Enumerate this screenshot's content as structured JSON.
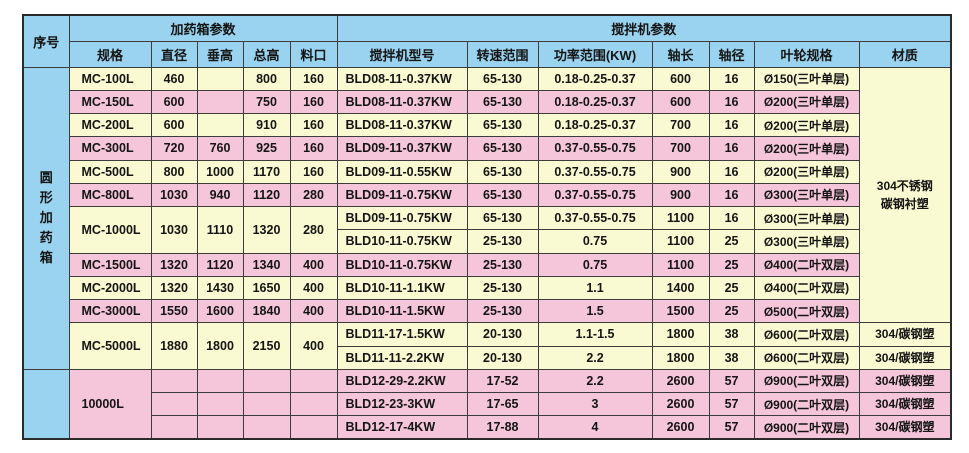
{
  "colors": {
    "header_blue": "#9ad3ef",
    "row_yellow": "#fafad2",
    "row_pink": "#f5c6d9",
    "border": "#3c3c3c",
    "text": "#141414"
  },
  "table": {
    "header": {
      "serial": "序号",
      "tank_group": "加药箱参数",
      "mixer_group": "搅拌机参数",
      "cols": [
        "规格",
        "直径",
        "垂高",
        "总高",
        "料口",
        "搅拌机型号",
        "转速范围",
        "功率范围(KW)",
        "轴长",
        "轴径",
        "叶轮规格",
        "材质"
      ]
    },
    "row_group_label": "圆形加药箱",
    "merged_material": "304不锈钢\n碳钢衬塑",
    "rows": [
      {
        "bg": "yellow",
        "cells": [
          {
            "v": "圆形加药箱",
            "rs": 13,
            "bg": "blue",
            "vert": true,
            "n": "row-group-label"
          },
          {
            "v": "MC-100L",
            "left": true,
            "n": "spec-cell"
          },
          {
            "v": "460"
          },
          {
            "v": ""
          },
          {
            "v": "800"
          },
          {
            "v": "160"
          },
          {
            "v": "BLD08-11-0.37KW",
            "leftsm": true,
            "n": "model-cell"
          },
          {
            "v": "65-130"
          },
          {
            "v": "0.18-0.25-0.37"
          },
          {
            "v": "600"
          },
          {
            "v": "16"
          },
          {
            "v": "Ø150(三叶单层)",
            "imp": true,
            "n": "impeller-cell"
          },
          {
            "v": "304不锈钢\n碳钢衬塑",
            "rs": 11,
            "mat": true,
            "n": "material-merged-cell"
          }
        ]
      },
      {
        "bg": "pink",
        "cells": [
          {
            "v": "MC-150L",
            "left": true,
            "n": "spec-cell"
          },
          {
            "v": "600"
          },
          {
            "v": ""
          },
          {
            "v": "750"
          },
          {
            "v": "160"
          },
          {
            "v": "BLD08-11-0.37KW",
            "leftsm": true,
            "n": "model-cell"
          },
          {
            "v": "65-130"
          },
          {
            "v": "0.18-0.25-0.37"
          },
          {
            "v": "600"
          },
          {
            "v": "16"
          },
          {
            "v": "Ø200(三叶单层)",
            "imp": true,
            "n": "impeller-cell"
          }
        ]
      },
      {
        "bg": "yellow",
        "cells": [
          {
            "v": "MC-200L",
            "left": true,
            "n": "spec-cell"
          },
          {
            "v": "600"
          },
          {
            "v": ""
          },
          {
            "v": "910"
          },
          {
            "v": "160"
          },
          {
            "v": "BLD08-11-0.37KW",
            "leftsm": true,
            "n": "model-cell"
          },
          {
            "v": "65-130"
          },
          {
            "v": "0.18-0.25-0.37"
          },
          {
            "v": "700"
          },
          {
            "v": "16"
          },
          {
            "v": "Ø200(三叶单层)",
            "imp": true,
            "n": "impeller-cell"
          }
        ]
      },
      {
        "bg": "pink",
        "cells": [
          {
            "v": "MC-300L",
            "left": true,
            "n": "spec-cell"
          },
          {
            "v": "720"
          },
          {
            "v": "760"
          },
          {
            "v": "925"
          },
          {
            "v": "160"
          },
          {
            "v": "BLD09-11-0.37KW",
            "leftsm": true,
            "n": "model-cell"
          },
          {
            "v": "65-130"
          },
          {
            "v": "0.37-0.55-0.75"
          },
          {
            "v": "700"
          },
          {
            "v": "16"
          },
          {
            "v": "Ø200(三叶单层)",
            "imp": true,
            "n": "impeller-cell"
          }
        ]
      },
      {
        "bg": "yellow",
        "cells": [
          {
            "v": "MC-500L",
            "left": true,
            "n": "spec-cell"
          },
          {
            "v": "800"
          },
          {
            "v": "1000"
          },
          {
            "v": "1170"
          },
          {
            "v": "160"
          },
          {
            "v": "BLD09-11-0.55KW",
            "leftsm": true,
            "n": "model-cell"
          },
          {
            "v": "65-130"
          },
          {
            "v": "0.37-0.55-0.75"
          },
          {
            "v": "900"
          },
          {
            "v": "16"
          },
          {
            "v": "Ø200(三叶单层)",
            "imp": true,
            "n": "impeller-cell"
          }
        ]
      },
      {
        "bg": "pink",
        "cells": [
          {
            "v": "MC-800L",
            "left": true,
            "n": "spec-cell"
          },
          {
            "v": "1030"
          },
          {
            "v": "940"
          },
          {
            "v": "1120"
          },
          {
            "v": "280"
          },
          {
            "v": "BLD09-11-0.75KW",
            "leftsm": true,
            "n": "model-cell"
          },
          {
            "v": "65-130"
          },
          {
            "v": "0.37-0.55-0.75"
          },
          {
            "v": "900"
          },
          {
            "v": "16"
          },
          {
            "v": "Ø300(三叶单层)",
            "imp": true,
            "n": "impeller-cell"
          }
        ]
      },
      {
        "bg": "yellow",
        "cells": [
          {
            "v": "MC-1000L",
            "rs": 2,
            "left": true,
            "n": "spec-cell"
          },
          {
            "v": "1030",
            "rs": 2
          },
          {
            "v": "1110",
            "rs": 2
          },
          {
            "v": "1320",
            "rs": 2
          },
          {
            "v": "280",
            "rs": 2
          },
          {
            "v": "BLD09-11-0.75KW",
            "leftsm": true,
            "n": "model-cell"
          },
          {
            "v": "65-130"
          },
          {
            "v": "0.37-0.55-0.75"
          },
          {
            "v": "1100"
          },
          {
            "v": "16"
          },
          {
            "v": "Ø300(三叶单层)",
            "imp": true,
            "n": "impeller-cell"
          }
        ]
      },
      {
        "bg": "yellow",
        "cells": [
          {
            "v": "BLD10-11-0.75KW",
            "leftsm": true,
            "n": "model-cell"
          },
          {
            "v": "25-130"
          },
          {
            "v": "0.75"
          },
          {
            "v": "1100"
          },
          {
            "v": "25"
          },
          {
            "v": "Ø300(三叶单层)",
            "imp": true,
            "n": "impeller-cell"
          }
        ]
      },
      {
        "bg": "pink",
        "cells": [
          {
            "v": "MC-1500L",
            "left": true,
            "n": "spec-cell"
          },
          {
            "v": "1320"
          },
          {
            "v": "1120"
          },
          {
            "v": "1340"
          },
          {
            "v": "400"
          },
          {
            "v": "BLD10-11-0.75KW",
            "leftsm": true,
            "n": "model-cell"
          },
          {
            "v": "25-130"
          },
          {
            "v": "0.75"
          },
          {
            "v": "1100"
          },
          {
            "v": "25"
          },
          {
            "v": "Ø400(二叶双层)",
            "imp": true,
            "n": "impeller-cell"
          }
        ]
      },
      {
        "bg": "yellow",
        "cells": [
          {
            "v": "MC-2000L",
            "left": true,
            "n": "spec-cell"
          },
          {
            "v": "1320"
          },
          {
            "v": "1430"
          },
          {
            "v": "1650"
          },
          {
            "v": "400"
          },
          {
            "v": "BLD10-11-1.1KW",
            "leftsm": true,
            "n": "model-cell"
          },
          {
            "v": "25-130"
          },
          {
            "v": "1.1"
          },
          {
            "v": "1400"
          },
          {
            "v": "25"
          },
          {
            "v": "Ø400(二叶双层)",
            "imp": true,
            "n": "impeller-cell"
          }
        ]
      },
      {
        "bg": "pink",
        "cells": [
          {
            "v": "MC-3000L",
            "left": true,
            "n": "spec-cell"
          },
          {
            "v": "1550"
          },
          {
            "v": "1600"
          },
          {
            "v": "1840"
          },
          {
            "v": "400"
          },
          {
            "v": "BLD10-11-1.5KW",
            "leftsm": true,
            "n": "model-cell"
          },
          {
            "v": "25-130"
          },
          {
            "v": "1.5"
          },
          {
            "v": "1500"
          },
          {
            "v": "25"
          },
          {
            "v": "Ø500(二叶双层)",
            "imp": true,
            "n": "impeller-cell"
          }
        ]
      },
      {
        "bg": "yellow",
        "cells": [
          {
            "v": "MC-5000L",
            "rs": 2,
            "left": true,
            "n": "spec-cell"
          },
          {
            "v": "1880",
            "rs": 2
          },
          {
            "v": "1800",
            "rs": 2
          },
          {
            "v": "2150",
            "rs": 2
          },
          {
            "v": "400",
            "rs": 2
          },
          {
            "v": "BLD11-17-1.5KW",
            "leftsm": true,
            "n": "model-cell"
          },
          {
            "v": "20-130"
          },
          {
            "v": "1.1-1.5"
          },
          {
            "v": "1800"
          },
          {
            "v": "38"
          },
          {
            "v": "Ø600(二叶双层)",
            "imp": true,
            "n": "impeller-cell"
          },
          {
            "v": "304/碳钢塑",
            "mat": true,
            "n": "material-cell"
          }
        ]
      },
      {
        "bg": "yellow",
        "cells": [
          {
            "v": "BLD11-11-2.2KW",
            "leftsm": true,
            "n": "model-cell"
          },
          {
            "v": "20-130"
          },
          {
            "v": "2.2"
          },
          {
            "v": "1800"
          },
          {
            "v": "38"
          },
          {
            "v": "Ø600(二叶双层)",
            "imp": true,
            "n": "impeller-cell"
          },
          {
            "v": "304/碳钢塑",
            "mat": true,
            "n": "material-cell"
          }
        ]
      },
      {
        "bg": "pink",
        "cells": [
          {
            "v": "",
            "rs": 3,
            "bg": "blue",
            "n": "serial-empty-cell"
          },
          {
            "v": "10000L",
            "rs": 3,
            "left": true,
            "n": "spec-cell"
          },
          {
            "v": ""
          },
          {
            "v": ""
          },
          {
            "v": ""
          },
          {
            "v": ""
          },
          {
            "v": "BLD12-29-2.2KW",
            "leftsm": true,
            "n": "model-cell"
          },
          {
            "v": "17-52"
          },
          {
            "v": "2.2"
          },
          {
            "v": "2600"
          },
          {
            "v": "57"
          },
          {
            "v": "Ø900(二叶双层)",
            "imp": true,
            "n": "impeller-cell"
          },
          {
            "v": "304/碳钢塑",
            "mat": true,
            "n": "material-cell"
          }
        ]
      },
      {
        "bg": "pink",
        "cells": [
          {
            "v": ""
          },
          {
            "v": ""
          },
          {
            "v": ""
          },
          {
            "v": ""
          },
          {
            "v": "BLD12-23-3KW",
            "leftsm": true,
            "n": "model-cell"
          },
          {
            "v": "17-65"
          },
          {
            "v": "3"
          },
          {
            "v": "2600"
          },
          {
            "v": "57"
          },
          {
            "v": "Ø900(二叶双层)",
            "imp": true,
            "n": "impeller-cell"
          },
          {
            "v": "304/碳钢塑",
            "mat": true,
            "n": "material-cell"
          }
        ]
      },
      {
        "bg": "pink",
        "cells": [
          {
            "v": ""
          },
          {
            "v": ""
          },
          {
            "v": ""
          },
          {
            "v": ""
          },
          {
            "v": "BLD12-17-4KW",
            "leftsm": true,
            "n": "model-cell"
          },
          {
            "v": "17-88"
          },
          {
            "v": "4"
          },
          {
            "v": "2600"
          },
          {
            "v": "57"
          },
          {
            "v": "Ø900(二叶双层)",
            "imp": true,
            "n": "impeller-cell"
          },
          {
            "v": "304/碳钢塑",
            "mat": true,
            "n": "material-cell"
          }
        ]
      }
    ]
  }
}
